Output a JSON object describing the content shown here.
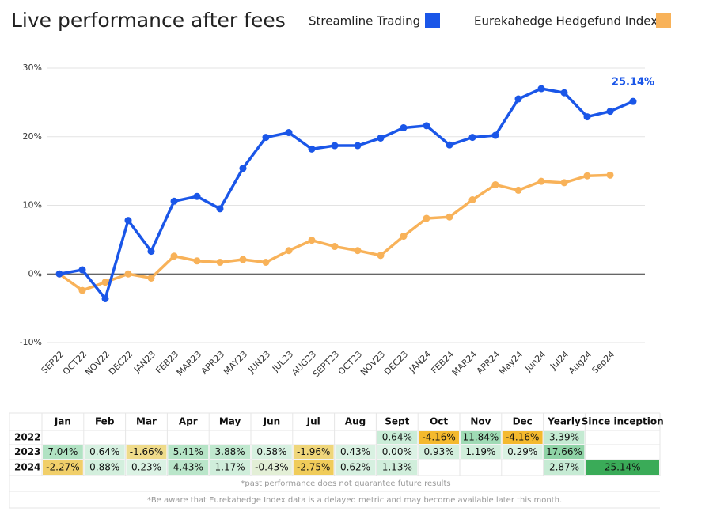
{
  "chart_data": {
    "type": "line",
    "title": "Live performance after fees",
    "categories": [
      "SEP22",
      "OCT22",
      "NOV22",
      "DEC22",
      "JAN23",
      "FEB23",
      "MAR23",
      "APR23",
      "MAY23",
      "JUN23",
      "JUL23",
      "AUG23",
      "SEPT23",
      "OCT23",
      "NOV23",
      "DEC23",
      "JAN24",
      "FEB24",
      "MAR24",
      "APR24",
      "May24",
      "Jun24",
      "Jul24",
      "Aug24",
      "Sep24",
      null
    ],
    "series": [
      {
        "name": "Streamline Trading",
        "color": "#1a56e8",
        "values": [
          0,
          0.6,
          -3.6,
          7.8,
          3.3,
          10.6,
          11.3,
          9.5,
          15.4,
          19.9,
          20.6,
          18.2,
          18.7,
          18.7,
          19.8,
          21.3,
          21.6,
          18.8,
          19.9,
          20.2,
          25.5,
          27.0,
          26.4,
          22.9,
          23.7,
          25.14
        ],
        "value_labels": [
          null,
          null,
          null,
          null,
          null,
          null,
          null,
          null,
          null,
          null,
          null,
          null,
          null,
          null,
          null,
          null,
          null,
          null,
          null,
          null,
          null,
          null,
          null,
          null,
          null,
          "25.14%"
        ]
      },
      {
        "name": "Eurekahedge Hedgefund Index",
        "color": "#f8b259",
        "values": [
          0,
          -2.4,
          -1.2,
          0.0,
          -0.6,
          2.6,
          1.9,
          1.7,
          2.1,
          1.7,
          3.4,
          4.9,
          4.0,
          3.4,
          2.7,
          5.5,
          8.1,
          8.3,
          10.8,
          13.0,
          12.2,
          13.5,
          13.3,
          14.3,
          14.4,
          null
        ]
      }
    ],
    "ylim": [
      -10,
      30
    ],
    "yticks": [
      {
        "value": -10,
        "label": "-10%"
      },
      {
        "value": 0,
        "label": "0%"
      },
      {
        "value": 10,
        "label": "10%"
      },
      {
        "value": 20,
        "label": "20%"
      },
      {
        "value": 30,
        "label": "30%"
      }
    ],
    "grid": true
  },
  "table": {
    "header": [
      "Jan",
      "Feb",
      "Mar",
      "Apr",
      "May",
      "Jun",
      "Jul",
      "Aug",
      "Sept",
      "Oct",
      "Nov",
      "Dec",
      "Yearly",
      "Since inception"
    ],
    "rows": [
      {
        "label": "2022",
        "cells": [
          null,
          null,
          null,
          null,
          null,
          null,
          null,
          null,
          "0.64%",
          "-4.16%",
          "11.84%",
          "-4.16%",
          "3.39%",
          null
        ],
        "colors": [
          null,
          null,
          null,
          null,
          null,
          null,
          null,
          null,
          "#c9ecd7",
          "#f4b92e",
          "#9fdbb5",
          "#f4b92e",
          "#c4ead2",
          null
        ]
      },
      {
        "label": "2023",
        "cells": [
          "7.04%",
          "0.64%",
          "-1.66%",
          "5.41%",
          "3.88%",
          "0.58%",
          "-1.96%",
          "0.43%",
          "0.00%",
          "0.93%",
          "1.19%",
          "0.29%",
          "17.66%",
          null
        ],
        "colors": [
          "#b1e2c3",
          "#d6f0e0",
          "#efdb8a",
          "#b5e4c6",
          "#bfe8ce",
          "#d6f0e0",
          "#efd67a",
          "#d9f1e2",
          "#dcf2e5",
          "#d3efdd",
          "#d0eedb",
          "#d9f1e2",
          "#8fd3a6",
          null
        ]
      },
      {
        "label": "2024",
        "cells": [
          "-2.27%",
          "0.88%",
          "0.23%",
          "4.43%",
          "1.17%",
          "-0.43%",
          "-2.75%",
          "0.62%",
          "1.13%",
          null,
          null,
          null,
          "2.87%",
          "25.14%"
        ],
        "colors": [
          "#f1cf6a",
          "#d3efdd",
          "#dbf2e4",
          "#bae6ca",
          "#d0eedb",
          "#e3efd6",
          "#f0cc5a",
          "#d6f0e0",
          "#d0eedb",
          null,
          null,
          null,
          "#c6ebd4",
          "#3aab58"
        ]
      }
    ],
    "notes": [
      "*past performance does not guarantee future results",
      "*Be aware that Eurekahedge Index data is a delayed metric and may become available later this month."
    ]
  }
}
